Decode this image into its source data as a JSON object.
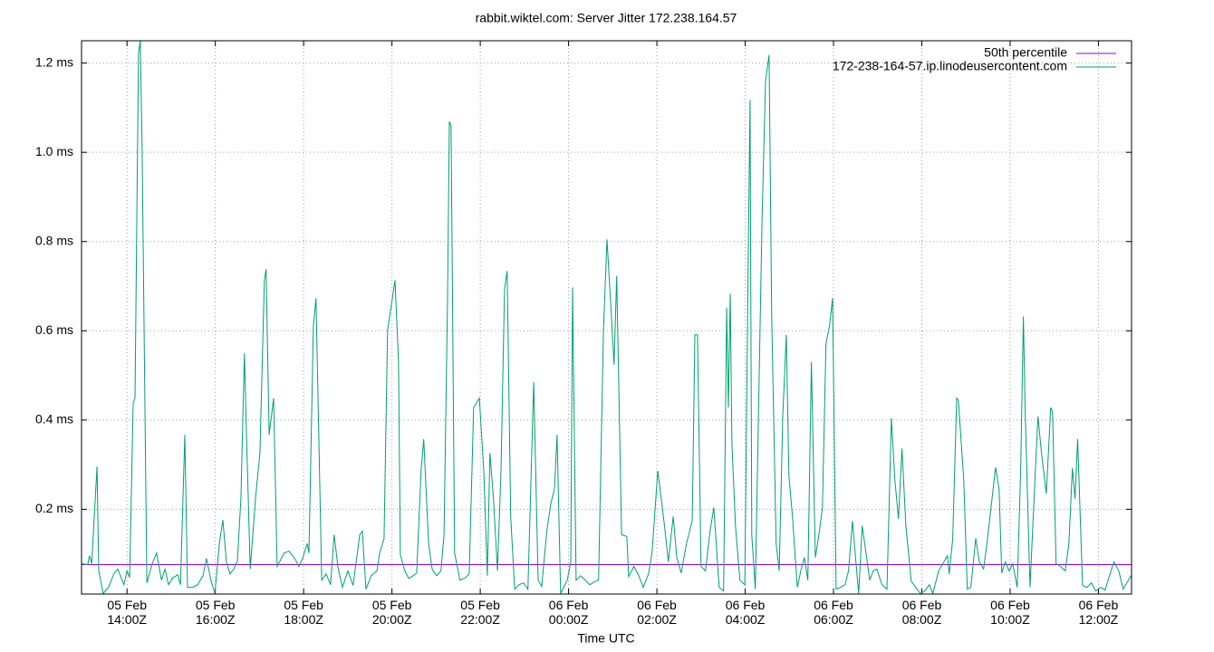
{
  "chart_data": {
    "type": "line",
    "title": "rabbit.wiktel.com: Server Jitter 172.238.164.57",
    "xlabel": "Time UTC",
    "xlim": [
      12.97,
      36.75
    ],
    "ylim": [
      0.01,
      1.25
    ],
    "xticks": [
      {
        "value": 14,
        "label": "05 Feb\n14:00Z"
      },
      {
        "value": 16,
        "label": "05 Feb\n16:00Z"
      },
      {
        "value": 18,
        "label": "05 Feb\n18:00Z"
      },
      {
        "value": 20,
        "label": "05 Feb\n20:00Z"
      },
      {
        "value": 22,
        "label": "05 Feb\n22:00Z"
      },
      {
        "value": 24,
        "label": "06 Feb\n00:00Z"
      },
      {
        "value": 26,
        "label": "06 Feb\n02:00Z"
      },
      {
        "value": 28,
        "label": "06 Feb\n04:00Z"
      },
      {
        "value": 30,
        "label": "06 Feb\n06:00Z"
      },
      {
        "value": 32,
        "label": "06 Feb\n08:00Z"
      },
      {
        "value": 34,
        "label": "06 Feb\n10:00Z"
      },
      {
        "value": 36,
        "label": "06 Feb\n12:00Z"
      }
    ],
    "yticks": [
      {
        "value": 0.2,
        "label": "0.2 ms"
      },
      {
        "value": 0.4,
        "label": "0.4 ms"
      },
      {
        "value": 0.6,
        "label": "0.6 ms"
      },
      {
        "value": 0.8,
        "label": "0.8 ms"
      },
      {
        "value": 1.0,
        "label": "1.0 ms"
      },
      {
        "value": 1.2,
        "label": "1.2 ms"
      }
    ],
    "grid": true,
    "legend": "top-right",
    "series": [
      {
        "name": "50th percentile",
        "color": "#9400d3",
        "x": [
          12.97,
          36.75
        ],
        "values": [
          0.076,
          0.076
        ]
      },
      {
        "name": "172-238-164-57.ip.linodeusercontent.com",
        "color": "#009e73",
        "x": [
          12.97,
          13.11,
          13.15,
          13.2,
          13.32,
          13.36,
          13.46,
          13.58,
          13.71,
          13.79,
          13.93,
          14.0,
          14.06,
          14.14,
          14.18,
          14.26,
          14.3,
          14.34,
          14.45,
          14.57,
          14.67,
          14.78,
          14.86,
          14.94,
          15.04,
          15.15,
          15.21,
          15.31,
          15.37,
          15.49,
          15.6,
          15.72,
          15.8,
          15.9,
          15.99,
          16.09,
          16.17,
          16.25,
          16.33,
          16.42,
          16.5,
          16.58,
          16.66,
          16.7,
          16.79,
          16.91,
          17.01,
          17.11,
          17.15,
          17.22,
          17.32,
          17.4,
          17.56,
          17.67,
          17.81,
          17.89,
          17.97,
          18.08,
          18.12,
          18.22,
          18.28,
          18.41,
          18.51,
          18.61,
          18.69,
          18.78,
          18.88,
          19.0,
          19.12,
          19.27,
          19.33,
          19.41,
          19.53,
          19.66,
          19.72,
          19.82,
          19.9,
          20.01,
          20.07,
          20.15,
          20.19,
          20.29,
          20.38,
          20.48,
          20.56,
          20.66,
          20.72,
          20.83,
          20.91,
          21.01,
          21.11,
          21.18,
          21.26,
          21.3,
          21.34,
          21.42,
          21.54,
          21.67,
          21.75,
          21.85,
          21.98,
          22.08,
          22.16,
          22.22,
          22.3,
          22.39,
          22.47,
          22.55,
          22.61,
          22.69,
          22.78,
          22.88,
          22.98,
          23.08,
          23.21,
          23.31,
          23.39,
          23.51,
          23.6,
          23.68,
          23.74,
          23.82,
          23.97,
          24.05,
          24.09,
          24.17,
          24.27,
          24.38,
          24.48,
          24.58,
          24.68,
          24.79,
          24.87,
          24.97,
          25.03,
          25.09,
          25.2,
          25.32,
          25.36,
          25.48,
          25.59,
          25.69,
          25.81,
          25.89,
          26.02,
          26.1,
          26.18,
          26.26,
          26.37,
          26.45,
          26.55,
          26.67,
          26.8,
          26.86,
          26.92,
          27.0,
          27.1,
          27.2,
          27.29,
          27.41,
          27.51,
          27.58,
          27.62,
          27.66,
          27.7,
          27.78,
          27.88,
          27.99,
          28.07,
          28.11,
          28.15,
          28.23,
          28.38,
          28.46,
          28.54,
          28.6,
          28.7,
          28.77,
          28.85,
          28.93,
          28.99,
          29.07,
          29.18,
          29.26,
          29.34,
          29.42,
          29.5,
          29.59,
          29.67,
          29.75,
          29.83,
          29.91,
          29.98,
          30.06,
          30.16,
          30.26,
          30.34,
          30.43,
          30.49,
          30.57,
          30.65,
          30.73,
          30.82,
          30.9,
          30.98,
          31.1,
          31.21,
          31.31,
          31.39,
          31.47,
          31.55,
          31.64,
          31.76,
          31.86,
          31.97,
          32.07,
          32.17,
          32.25,
          32.38,
          32.5,
          32.58,
          32.62,
          32.7,
          32.79,
          32.83,
          32.95,
          33.03,
          33.11,
          33.22,
          33.3,
          33.4,
          33.48,
          33.59,
          33.67,
          33.75,
          33.81,
          33.89,
          33.98,
          34.06,
          34.16,
          34.24,
          34.3,
          34.34,
          34.45,
          34.57,
          34.63,
          34.71,
          34.82,
          34.92,
          34.96,
          35.04,
          35.14,
          35.25,
          35.33,
          35.41,
          35.47,
          35.53,
          35.64,
          35.74,
          35.84,
          35.94,
          36.05,
          36.15,
          36.25,
          36.35,
          36.46,
          36.56,
          36.74
        ],
        "values": [
          0.078,
          0.076,
          0.096,
          0.078,
          0.296,
          0.062,
          0.011,
          0.025,
          0.057,
          0.066,
          0.031,
          0.062,
          0.047,
          0.438,
          0.449,
          1.222,
          1.25,
          1.019,
          0.035,
          0.078,
          0.102,
          0.041,
          0.066,
          0.031,
          0.047,
          0.053,
          0.031,
          0.367,
          0.025,
          0.025,
          0.031,
          0.051,
          0.09,
          0.041,
          0.011,
          0.123,
          0.176,
          0.082,
          0.055,
          0.066,
          0.084,
          0.224,
          0.55,
          0.387,
          0.066,
          0.224,
          0.326,
          0.713,
          0.738,
          0.367,
          0.449,
          0.072,
          0.102,
          0.106,
          0.088,
          0.072,
          0.088,
          0.123,
          0.102,
          0.611,
          0.673,
          0.041,
          0.055,
          0.031,
          0.143,
          0.068,
          0.025,
          0.062,
          0.029,
          0.143,
          0.151,
          0.021,
          0.051,
          0.062,
          0.102,
          0.133,
          0.601,
          0.673,
          0.713,
          0.53,
          0.098,
          0.062,
          0.045,
          0.051,
          0.057,
          0.286,
          0.357,
          0.123,
          0.066,
          0.051,
          0.062,
          0.143,
          0.673,
          1.069,
          1.059,
          0.102,
          0.041,
          0.047,
          0.055,
          0.428,
          0.449,
          0.286,
          0.051,
          0.326,
          0.224,
          0.062,
          0.286,
          0.693,
          0.734,
          0.184,
          0.021,
          0.031,
          0.035,
          0.021,
          0.485,
          0.041,
          0.027,
          0.153,
          0.214,
          0.245,
          0.367,
          0.011,
          0.041,
          0.082,
          0.697,
          0.041,
          0.051,
          0.041,
          0.031,
          0.037,
          0.041,
          0.601,
          0.805,
          0.632,
          0.524,
          0.723,
          0.143,
          0.139,
          0.049,
          0.072,
          0.051,
          0.025,
          0.055,
          0.102,
          0.286,
          0.224,
          0.157,
          0.082,
          0.184,
          0.092,
          0.057,
          0.123,
          0.174,
          0.591,
          0.591,
          0.072,
          0.062,
          0.147,
          0.204,
          0.025,
          0.017,
          0.652,
          0.428,
          0.683,
          0.347,
          0.163,
          0.041,
          0.031,
          0.785,
          1.117,
          0.143,
          0.021,
          0.846,
          1.161,
          1.218,
          0.632,
          0.123,
          0.062,
          0.408,
          0.591,
          0.275,
          0.184,
          0.025,
          0.062,
          0.092,
          0.041,
          0.53,
          0.092,
          0.143,
          0.204,
          0.571,
          0.611,
          0.673,
          0.021,
          0.025,
          0.031,
          0.062,
          0.174,
          0.102,
          0.011,
          0.163,
          0.106,
          0.041,
          0.062,
          0.066,
          0.031,
          0.021,
          0.404,
          0.265,
          0.178,
          0.336,
          0.163,
          0.039,
          0.025,
          0.011,
          0.017,
          0.031,
          0.011,
          0.062,
          0.082,
          0.096,
          0.055,
          0.133,
          0.449,
          0.444,
          0.265,
          0.021,
          0.025,
          0.135,
          0.082,
          0.066,
          0.127,
          0.224,
          0.294,
          0.245,
          0.057,
          0.082,
          0.062,
          0.078,
          0.025,
          0.296,
          0.632,
          0.428,
          0.025,
          0.286,
          0.408,
          0.326,
          0.235,
          0.428,
          0.418,
          0.078,
          0.072,
          0.062,
          0.123,
          0.292,
          0.224,
          0.357,
          0.029,
          0.025,
          0.035,
          0.017,
          0.025,
          0.019,
          0.051,
          0.082,
          0.062,
          0.021,
          0.051
        ]
      }
    ]
  }
}
